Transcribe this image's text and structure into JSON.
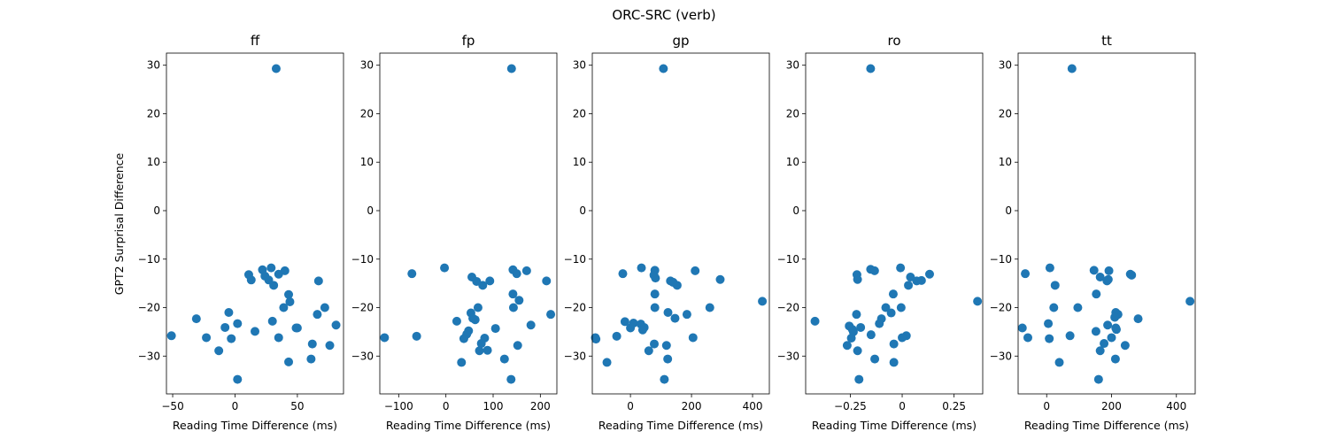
{
  "figure": {
    "suptitle": "ORC-SRC (verb)",
    "ylabel": "GPT2 Surprisal Difference",
    "marker_color": "#1f77b4"
  },
  "chart_data": [
    {
      "type": "scatter",
      "title": "ff",
      "xlabel": "Reading Time Difference (ms)",
      "ylabel": "GPT2 Surprisal Difference",
      "xlim": [
        -55,
        87
      ],
      "ylim": [
        -37.8,
        32.5
      ],
      "xticks": [
        -50,
        0,
        50
      ],
      "yticks": [
        -30,
        -20,
        -10,
        0,
        10,
        20,
        30
      ],
      "x": [
        33,
        22,
        29,
        11,
        13,
        35,
        40,
        24,
        27,
        31,
        43,
        67,
        44,
        49,
        39,
        66,
        72,
        -5,
        30,
        -31,
        2,
        -8,
        -51,
        -23,
        16,
        50,
        81,
        -3,
        35,
        62,
        76,
        -13,
        61,
        43,
        2
      ],
      "y": [
        29.3,
        -12.2,
        -11.8,
        -13.2,
        -14.3,
        -13.1,
        -12.4,
        -13.5,
        -14.3,
        -15.4,
        -17.3,
        -14.5,
        -18.8,
        -24.2,
        -20.0,
        -21.4,
        -20.0,
        -21.0,
        -22.8,
        -22.3,
        -23.3,
        -24.1,
        -25.8,
        -26.2,
        -24.9,
        -24.2,
        -23.6,
        -26.4,
        -26.2,
        -27.5,
        -27.8,
        -28.9,
        -30.6,
        -31.2,
        -34.8
      ]
    },
    {
      "type": "scatter",
      "title": "fp",
      "xlabel": "Reading Time Difference (ms)",
      "ylabel": "",
      "xlim": [
        -140,
        235
      ],
      "ylim": [
        -37.8,
        32.5
      ],
      "xticks": [
        -100,
        0,
        100,
        200
      ],
      "yticks": [
        -30,
        -20,
        -10,
        0,
        10,
        20,
        30
      ],
      "x": [
        139,
        -3,
        -72,
        55,
        65,
        78,
        93,
        142,
        150,
        171,
        213,
        142,
        155,
        143,
        68,
        53,
        62,
        23,
        57,
        48,
        105,
        44,
        38,
        -62,
        -130,
        82,
        75,
        152,
        88,
        124,
        71,
        33,
        138,
        180,
        222
      ],
      "y": [
        29.3,
        -11.8,
        -13.0,
        -13.7,
        -14.6,
        -15.4,
        -14.5,
        -12.2,
        -13.0,
        -12.4,
        -14.5,
        -17.2,
        -18.5,
        -20.0,
        -20.0,
        -21.1,
        -22.5,
        -22.8,
        -22.2,
        -24.8,
        -24.3,
        -25.5,
        -26.4,
        -25.9,
        -26.2,
        -26.3,
        -27.4,
        -27.8,
        -28.8,
        -30.6,
        -28.9,
        -31.3,
        -34.8,
        -23.6,
        -21.4
      ]
    },
    {
      "type": "scatter",
      "title": "gp",
      "xlabel": "Reading Time Difference (ms)",
      "ylabel": "",
      "xlim": [
        -125,
        455
      ],
      "ylim": [
        -37.8,
        32.5
      ],
      "xticks": [
        0,
        200,
        400
      ],
      "yticks": [
        -30,
        -20,
        -10,
        0,
        10,
        20,
        30
      ],
      "x": [
        108,
        36,
        80,
        -25,
        77,
        82,
        131,
        140,
        153,
        212,
        294,
        80,
        123,
        146,
        185,
        260,
        80,
        432,
        -18,
        0,
        10,
        34,
        45,
        40,
        -45,
        -115,
        -113,
        205,
        78,
        118,
        60,
        -77,
        122,
        111
      ],
      "y": [
        29.3,
        -11.8,
        -12.3,
        -13.0,
        -13.3,
        -13.9,
        -14.5,
        -14.8,
        -15.4,
        -12.4,
        -14.2,
        -17.2,
        -21.0,
        -22.2,
        -21.4,
        -20.0,
        -20.0,
        -18.7,
        -22.9,
        -24.2,
        -23.2,
        -23.4,
        -24.1,
        -24.6,
        -25.9,
        -26.2,
        -26.5,
        -26.2,
        -27.5,
        -27.8,
        -28.9,
        -31.3,
        -30.6,
        -34.8
      ]
    },
    {
      "type": "scatter",
      "title": "ro",
      "xlabel": "Reading Time Difference (ms)",
      "ylabel": "",
      "xlim": [
        -0.465,
        0.388
      ],
      "ylim": [
        -37.8,
        32.5
      ],
      "xticks": [
        -0.25,
        0.0,
        0.25
      ],
      "yticks": [
        -30,
        -20,
        -10,
        0,
        10,
        20,
        30
      ],
      "x": [
        -0.152,
        -0.152,
        -0.133,
        -0.008,
        -0.218,
        -0.215,
        0.132,
        0.07,
        0.04,
        0.093,
        0.03,
        -0.043,
        -0.079,
        -0.053,
        -0.005,
        -0.22,
        -0.42,
        -0.1,
        -0.11,
        -0.255,
        -0.24,
        -0.235,
        -0.2,
        0.02,
        0.0,
        -0.245,
        -0.15,
        -0.04,
        -0.265,
        -0.215,
        -0.132,
        -0.04,
        -0.208,
        0.363
      ],
      "y": [
        29.3,
        -12.1,
        -12.4,
        -11.8,
        -13.2,
        -14.2,
        -13.1,
        -14.5,
        -13.7,
        -14.4,
        -15.4,
        -17.2,
        -20.0,
        -21.1,
        -20.0,
        -21.4,
        -22.8,
        -22.3,
        -23.3,
        -23.8,
        -24.5,
        -25.0,
        -24.1,
        -25.8,
        -26.2,
        -26.3,
        -25.6,
        -27.5,
        -27.8,
        -28.9,
        -30.6,
        -31.3,
        -34.8,
        -18.7
      ]
    },
    {
      "type": "scatter",
      "title": "tt",
      "xlabel": "Reading Time Difference (ms)",
      "ylabel": "",
      "xlim": [
        -88,
        458
      ],
      "ylim": [
        -37.8,
        32.5
      ],
      "xticks": [
        0,
        200,
        400
      ],
      "yticks": [
        -30,
        -20,
        -10,
        0,
        10,
        20,
        30
      ],
      "x": [
        78,
        10,
        146,
        192,
        -66,
        165,
        186,
        190,
        262,
        258,
        26,
        153,
        22,
        96,
        213,
        220,
        210,
        282,
        442,
        5,
        -75,
        188,
        213,
        215,
        152,
        72,
        200,
        -58,
        8,
        177,
        242,
        165,
        39,
        212,
        160
      ],
      "y": [
        29.3,
        -11.8,
        -12.3,
        -12.4,
        -13.0,
        -13.7,
        -14.5,
        -14.2,
        -13.3,
        -13.1,
        -15.4,
        -17.2,
        -20.0,
        -20.0,
        -21.0,
        -21.4,
        -22.0,
        -22.3,
        -18.7,
        -23.3,
        -24.2,
        -23.6,
        -24.2,
        -24.5,
        -24.9,
        -25.8,
        -26.2,
        -26.2,
        -26.4,
        -27.4,
        -27.8,
        -28.9,
        -31.3,
        -30.6,
        -34.8
      ]
    }
  ]
}
